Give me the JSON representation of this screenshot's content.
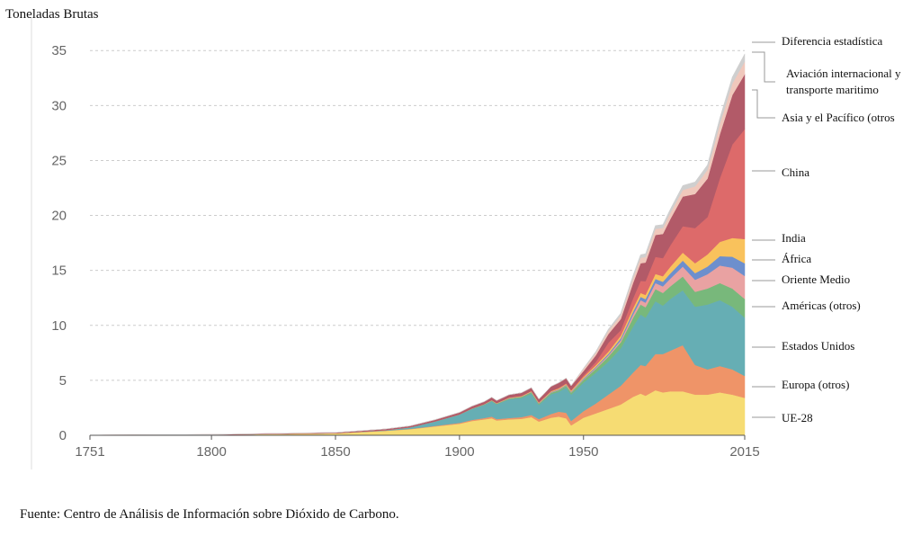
{
  "chart_data": {
    "type": "area",
    "ylabel": "Toneladas Brutas",
    "xlabel": "",
    "ylim": [
      0,
      36
    ],
    "yticks": [
      0,
      5,
      10,
      15,
      20,
      25,
      30,
      35
    ],
    "xticks": [
      1751,
      1800,
      1850,
      1900,
      1950,
      2015
    ],
    "xlim": [
      1751,
      2015
    ],
    "grid": true,
    "x": [
      1751,
      1800,
      1850,
      1870,
      1880,
      1890,
      1900,
      1905,
      1910,
      1913,
      1915,
      1920,
      1925,
      1929,
      1932,
      1937,
      1940,
      1943,
      1945,
      1950,
      1955,
      1960,
      1965,
      1970,
      1973,
      1975,
      1979,
      1982,
      1985,
      1990,
      1995,
      2000,
      2005,
      2010,
      2015
    ],
    "series": [
      {
        "name": "UE-28",
        "color": "#f6dc73",
        "values": [
          0.01,
          0.05,
          0.18,
          0.4,
          0.55,
          0.8,
          1.05,
          1.3,
          1.45,
          1.55,
          1.35,
          1.45,
          1.5,
          1.65,
          1.25,
          1.6,
          1.7,
          1.55,
          0.9,
          1.6,
          2.0,
          2.4,
          2.8,
          3.5,
          3.8,
          3.6,
          4.1,
          3.9,
          4.0,
          4.0,
          3.7,
          3.7,
          3.9,
          3.7,
          3.4
        ]
      },
      {
        "name": "Europa (otros)",
        "color": "#ef9468",
        "values": [
          0,
          0,
          0.01,
          0.02,
          0.03,
          0.05,
          0.08,
          0.1,
          0.12,
          0.15,
          0.12,
          0.12,
          0.15,
          0.2,
          0.22,
          0.35,
          0.45,
          0.5,
          0.4,
          0.6,
          0.9,
          1.3,
          1.7,
          2.2,
          2.6,
          2.7,
          3.3,
          3.5,
          3.7,
          4.2,
          2.7,
          2.3,
          2.4,
          2.3,
          2.0
        ]
      },
      {
        "name": "Estados Unidos",
        "color": "#66aeb4",
        "values": [
          0,
          0,
          0.01,
          0.05,
          0.15,
          0.4,
          0.75,
          1.0,
          1.2,
          1.4,
          1.35,
          1.7,
          1.75,
          1.95,
          1.3,
          1.8,
          1.8,
          2.3,
          2.4,
          2.6,
          2.8,
          3.0,
          3.4,
          4.2,
          4.6,
          4.4,
          4.8,
          4.4,
          4.7,
          5.0,
          5.3,
          5.9,
          6.0,
          5.7,
          5.3
        ]
      },
      {
        "name": "Américas (otros)",
        "color": "#78b87b",
        "values": [
          0,
          0,
          0,
          0,
          0,
          0.01,
          0.02,
          0.03,
          0.05,
          0.06,
          0.06,
          0.08,
          0.1,
          0.12,
          0.1,
          0.13,
          0.15,
          0.17,
          0.18,
          0.25,
          0.35,
          0.45,
          0.55,
          0.8,
          0.9,
          0.95,
          1.1,
          1.15,
          1.15,
          1.25,
          1.35,
          1.45,
          1.55,
          1.65,
          1.7
        ]
      },
      {
        "name": "Oriente Medio",
        "color": "#e9a2a2",
        "values": [
          0,
          0,
          0,
          0,
          0,
          0,
          0,
          0,
          0,
          0,
          0,
          0,
          0,
          0,
          0.01,
          0.02,
          0.03,
          0.03,
          0.04,
          0.05,
          0.08,
          0.12,
          0.18,
          0.3,
          0.4,
          0.42,
          0.55,
          0.6,
          0.7,
          0.9,
          1.1,
          1.3,
          1.6,
          1.9,
          2.1
        ]
      },
      {
        "name": "África",
        "color": "#6d8fcd",
        "values": [
          0,
          0,
          0,
          0,
          0,
          0,
          0,
          0,
          0,
          0.01,
          0.01,
          0.02,
          0.02,
          0.03,
          0.03,
          0.04,
          0.05,
          0.05,
          0.05,
          0.08,
          0.1,
          0.13,
          0.18,
          0.25,
          0.3,
          0.32,
          0.38,
          0.42,
          0.48,
          0.55,
          0.6,
          0.7,
          0.85,
          1.0,
          1.15
        ]
      },
      {
        "name": "India",
        "color": "#f9c25c",
        "values": [
          0,
          0,
          0,
          0,
          0,
          0,
          0.01,
          0.02,
          0.03,
          0.04,
          0.04,
          0.05,
          0.05,
          0.06,
          0.06,
          0.07,
          0.08,
          0.08,
          0.08,
          0.12,
          0.15,
          0.2,
          0.25,
          0.32,
          0.35,
          0.38,
          0.45,
          0.5,
          0.6,
          0.72,
          0.9,
          1.1,
          1.3,
          1.7,
          2.2
        ]
      },
      {
        "name": "China",
        "color": "#dd6a6a",
        "values": [
          0,
          0,
          0,
          0,
          0,
          0,
          0,
          0,
          0,
          0,
          0,
          0.02,
          0.02,
          0.03,
          0.03,
          0.05,
          0.06,
          0.06,
          0.05,
          0.15,
          0.3,
          0.8,
          0.5,
          0.9,
          1.1,
          1.25,
          1.55,
          1.65,
          1.95,
          2.4,
          3.2,
          3.4,
          5.8,
          8.5,
          10.0
        ]
      },
      {
        "name": "Asia y el Pacífico (otros",
        "color": "#b25a68",
        "values": [
          0.01,
          0.02,
          0.05,
          0.1,
          0.12,
          0.15,
          0.18,
          0.2,
          0.22,
          0.25,
          0.24,
          0.25,
          0.28,
          0.3,
          0.3,
          0.4,
          0.45,
          0.45,
          0.4,
          0.4,
          0.6,
          0.8,
          1.0,
          1.4,
          1.6,
          1.7,
          2.0,
          2.2,
          2.4,
          2.7,
          3.1,
          3.5,
          4.0,
          4.5,
          5.0
        ]
      },
      {
        "name": "Aviación internacional y transporte maritimo",
        "color": "#f0c8bc",
        "values": [
          0,
          0,
          0,
          0,
          0,
          0,
          0,
          0,
          0,
          0,
          0,
          0,
          0,
          0,
          0,
          0,
          0.02,
          0.02,
          0.02,
          0.2,
          0.25,
          0.3,
          0.35,
          0.45,
          0.5,
          0.5,
          0.55,
          0.55,
          0.55,
          0.6,
          0.7,
          0.8,
          0.95,
          1.05,
          1.15
        ]
      },
      {
        "name": "Diferencia estadística",
        "color": "#cfcfcf",
        "values": [
          0,
          0,
          0,
          0,
          0,
          0,
          0,
          0,
          0,
          0,
          0,
          0,
          0,
          0,
          0,
          0,
          0,
          0,
          0,
          0.05,
          0.1,
          0.15,
          0.2,
          0.25,
          0.28,
          0.3,
          0.3,
          0.3,
          0.35,
          0.4,
          0.4,
          0.45,
          0.55,
          0.6,
          0.7
        ]
      }
    ]
  },
  "legend": [
    {
      "label": "Diferencia estadística"
    },
    {
      "label": "Aviación internacional y",
      "label2": "transporte maritimo"
    },
    {
      "label": "Asia y el Pacífico (otros"
    },
    {
      "label": "China"
    },
    {
      "label": "India"
    },
    {
      "label": "África"
    },
    {
      "label": "Oriente Medio"
    },
    {
      "label": "Américas (otros)"
    },
    {
      "label": "Estados Unidos"
    },
    {
      "label": "Europa (otros)"
    },
    {
      "label": "UE-28"
    }
  ],
  "source": "Fuente: Centro de Análisis de Información sobre Dióxido de Carbono."
}
